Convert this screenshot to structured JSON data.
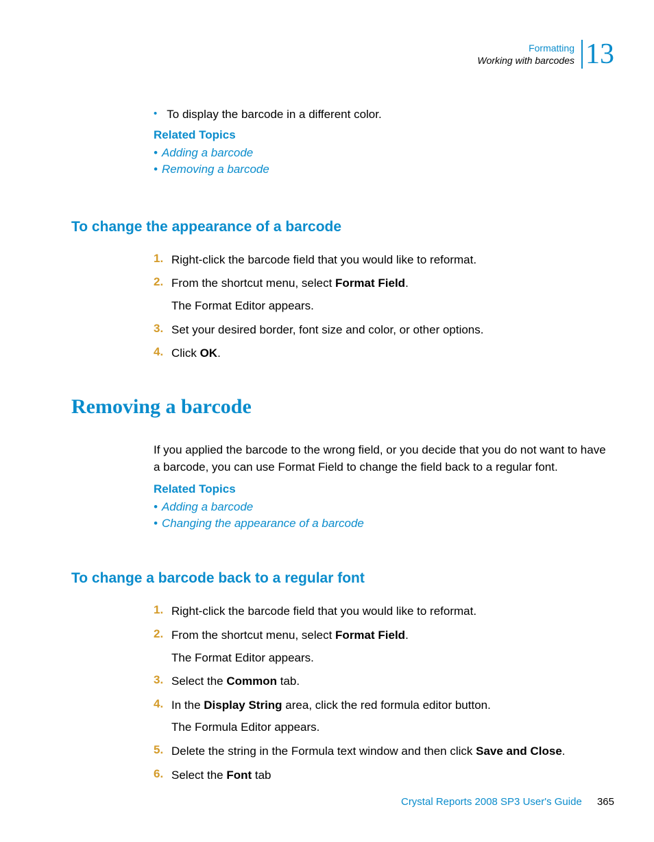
{
  "header": {
    "line1": "Formatting",
    "line2": "Working with barcodes",
    "chapter": "13"
  },
  "intro": {
    "bullet": "To display the barcode in a different color.",
    "related_heading": "Related Topics",
    "links": [
      "Adding a barcode",
      "Removing a barcode"
    ]
  },
  "section1": {
    "heading": "To change the appearance of a barcode",
    "steps": [
      {
        "n": "1.",
        "text": "Right-click the barcode field that you would like to reformat."
      },
      {
        "n": "2.",
        "text_pre": "From the shortcut menu, select ",
        "bold": "Format Field",
        "text_post": ".",
        "sub": "The Format Editor appears."
      },
      {
        "n": "3.",
        "text": "Set your desired border, font size and color, or other options."
      },
      {
        "n": "4.",
        "text_pre": "Click ",
        "bold": "OK",
        "text_post": "."
      }
    ]
  },
  "section2": {
    "heading": "Removing a barcode",
    "para": "If you applied the barcode to the wrong field, or you decide that you do not want to have a barcode, you can use Format Field to change the field back to a regular font.",
    "related_heading": "Related Topics",
    "links": [
      "Adding a barcode",
      "Changing the appearance of a barcode"
    ]
  },
  "section3": {
    "heading": "To change a barcode back to a regular font",
    "steps": [
      {
        "n": "1.",
        "text": "Right-click the barcode field that you would like to reformat."
      },
      {
        "n": "2.",
        "text_pre": "From the shortcut menu, select ",
        "bold": "Format Field",
        "text_post": ".",
        "sub": "The Format Editor appears."
      },
      {
        "n": "3.",
        "text_pre": "Select the ",
        "bold": "Common",
        "text_post": " tab."
      },
      {
        "n": "4.",
        "text_pre": "In the ",
        "bold": "Display String",
        "text_post": " area, click the red formula editor button.",
        "sub": "The Formula Editor appears."
      },
      {
        "n": "5.",
        "text_pre": "Delete the string in the Formula text window and then click ",
        "bold": "Save and Close",
        "text_post": "."
      },
      {
        "n": "6.",
        "text_pre": "Select the ",
        "bold": "Font",
        "text_post": " tab"
      }
    ]
  },
  "footer": {
    "title": "Crystal Reports 2008 SP3 User's Guide",
    "page": "365"
  },
  "colors": {
    "accent": "#0a8ccc",
    "number": "#d49b2a",
    "text": "#000000",
    "bg": "#ffffff"
  }
}
